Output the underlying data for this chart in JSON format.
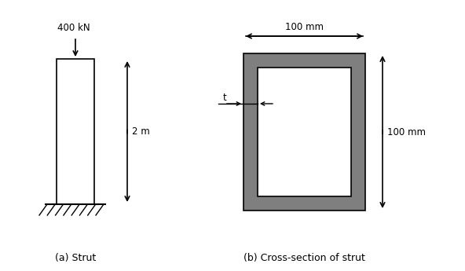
{
  "bg_color": "#ffffff",
  "line_color": "#000000",
  "gray_color": "#7f7f7f",
  "label_a": "(a) Strut",
  "label_b": "(b) Cross-section of strut",
  "force_label": "400 kN",
  "dim_2m": "2 m",
  "dim_100mm_h": "100 mm",
  "dim_100mm_v": "100 mm",
  "dim_t": "t"
}
